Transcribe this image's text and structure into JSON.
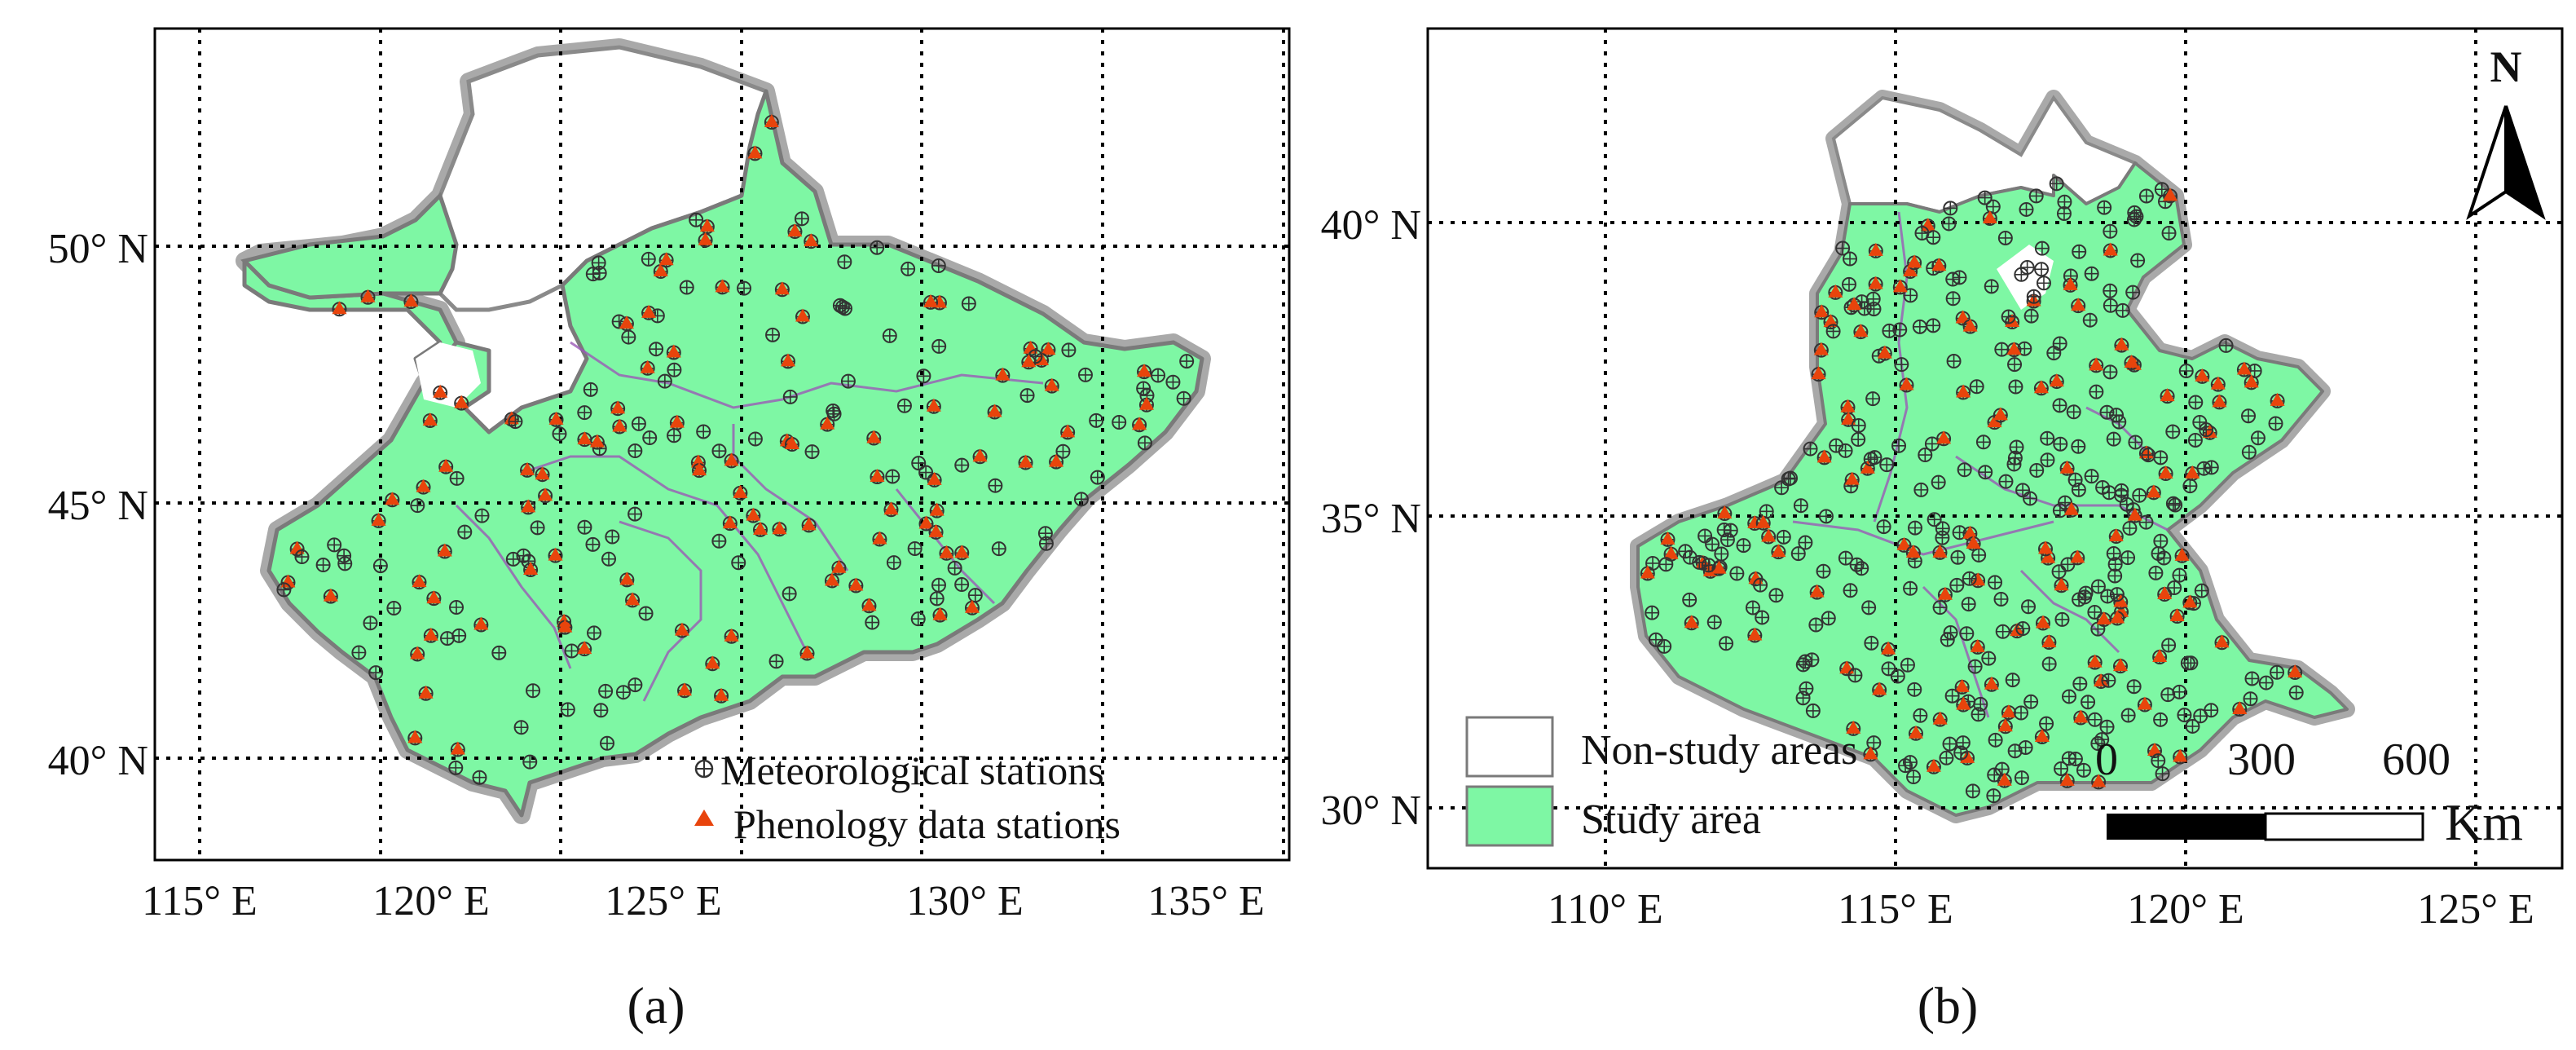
{
  "panel_a": {
    "caption": "(a)",
    "x_ticks": [
      "115° E",
      "120° E",
      "125° E",
      "130° E",
      "135° E"
    ],
    "y_ticks": [
      "50° N",
      "45° N",
      "40° N"
    ],
    "legend": {
      "meteorological": "Meteorological stations",
      "phenology": "Phenology data stations"
    }
  },
  "panel_b": {
    "caption": "(b)",
    "x_ticks": [
      "110° E",
      "115° E",
      "120° E",
      "125° E"
    ],
    "y_ticks": [
      "40° N",
      "35° N",
      "30° N"
    ],
    "legend": {
      "non_study": "Non-study areas",
      "study": "Study area"
    },
    "north": "N",
    "scale_bar": {
      "ticks": [
        "0",
        "300",
        "600"
      ],
      "unit": "Km"
    }
  },
  "colors": {
    "study_area": "#7ef7a4",
    "non_study_area": "#ffffff",
    "phenology_marker": "#e8440c",
    "outline": "#a0a0a0",
    "province_border": "#9b59b6"
  }
}
